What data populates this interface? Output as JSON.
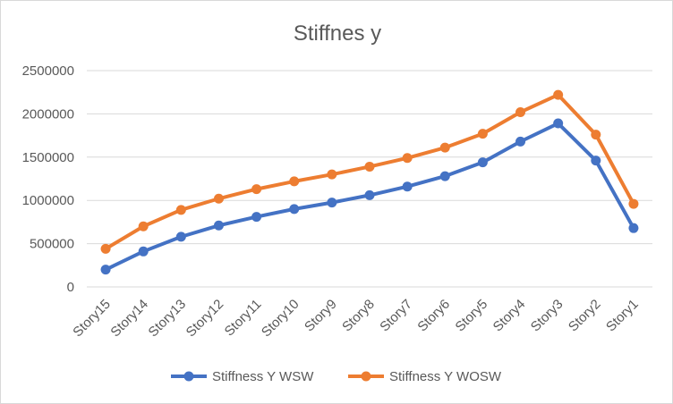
{
  "chart_data": {
    "type": "line",
    "title": "Stiffnes y",
    "xlabel": "",
    "ylabel": "",
    "categories": [
      "Story15",
      "Story14",
      "Story13",
      "Story12",
      "Story11",
      "Story10",
      "Story9",
      "Story8",
      "Story7",
      "Story6",
      "Story5",
      "Story4",
      "Story3",
      "Story2",
      "Story1"
    ],
    "ylim": [
      0,
      2500000
    ],
    "yticks": [
      0,
      500000,
      1000000,
      1500000,
      2000000,
      2500000
    ],
    "ytick_labels": [
      "0",
      "500000",
      "1000000",
      "1500000",
      "2000000",
      "2500000"
    ],
    "grid": true,
    "legend_position": "bottom",
    "series": [
      {
        "name": "Stiffness Y WSW",
        "color": "#4472c4",
        "values": [
          200000,
          410000,
          580000,
          710000,
          810000,
          900000,
          975000,
          1060000,
          1160000,
          1280000,
          1440000,
          1680000,
          1890000,
          1460000,
          680000
        ]
      },
      {
        "name": "Stiffness Y WOSW",
        "color": "#ed7d31",
        "values": [
          440000,
          700000,
          890000,
          1020000,
          1130000,
          1220000,
          1300000,
          1390000,
          1490000,
          1610000,
          1770000,
          2020000,
          2220000,
          1760000,
          960000
        ]
      }
    ]
  }
}
